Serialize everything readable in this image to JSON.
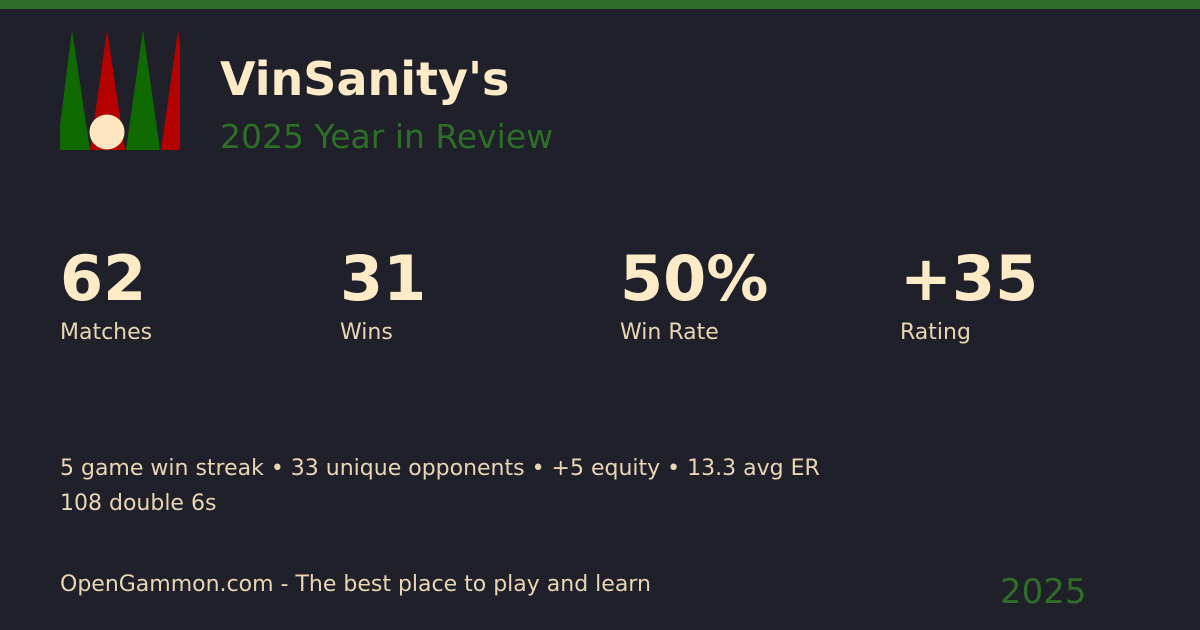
{
  "header": {
    "name": "VinSanity's",
    "subtitle": "2025 Year in Review"
  },
  "stats": [
    {
      "value": "62",
      "label": "Matches"
    },
    {
      "value": "31",
      "label": "Wins"
    },
    {
      "value": "50%",
      "label": "Win Rate"
    },
    {
      "value": "+35",
      "label": "Rating"
    }
  ],
  "facts": {
    "line1": "5 game win streak • 33 unique opponents • +5 equity • 13.3 avg ER",
    "line2": "108 double 6s"
  },
  "footer": {
    "tagline": "OpenGammon.com - The best place to play and learn",
    "year": "2025"
  },
  "colors": {
    "accent": "#2e6e27",
    "background": "#1f2029",
    "text": "#fdebc8",
    "green_point": "#0f6b00",
    "red_point": "#b50000"
  }
}
